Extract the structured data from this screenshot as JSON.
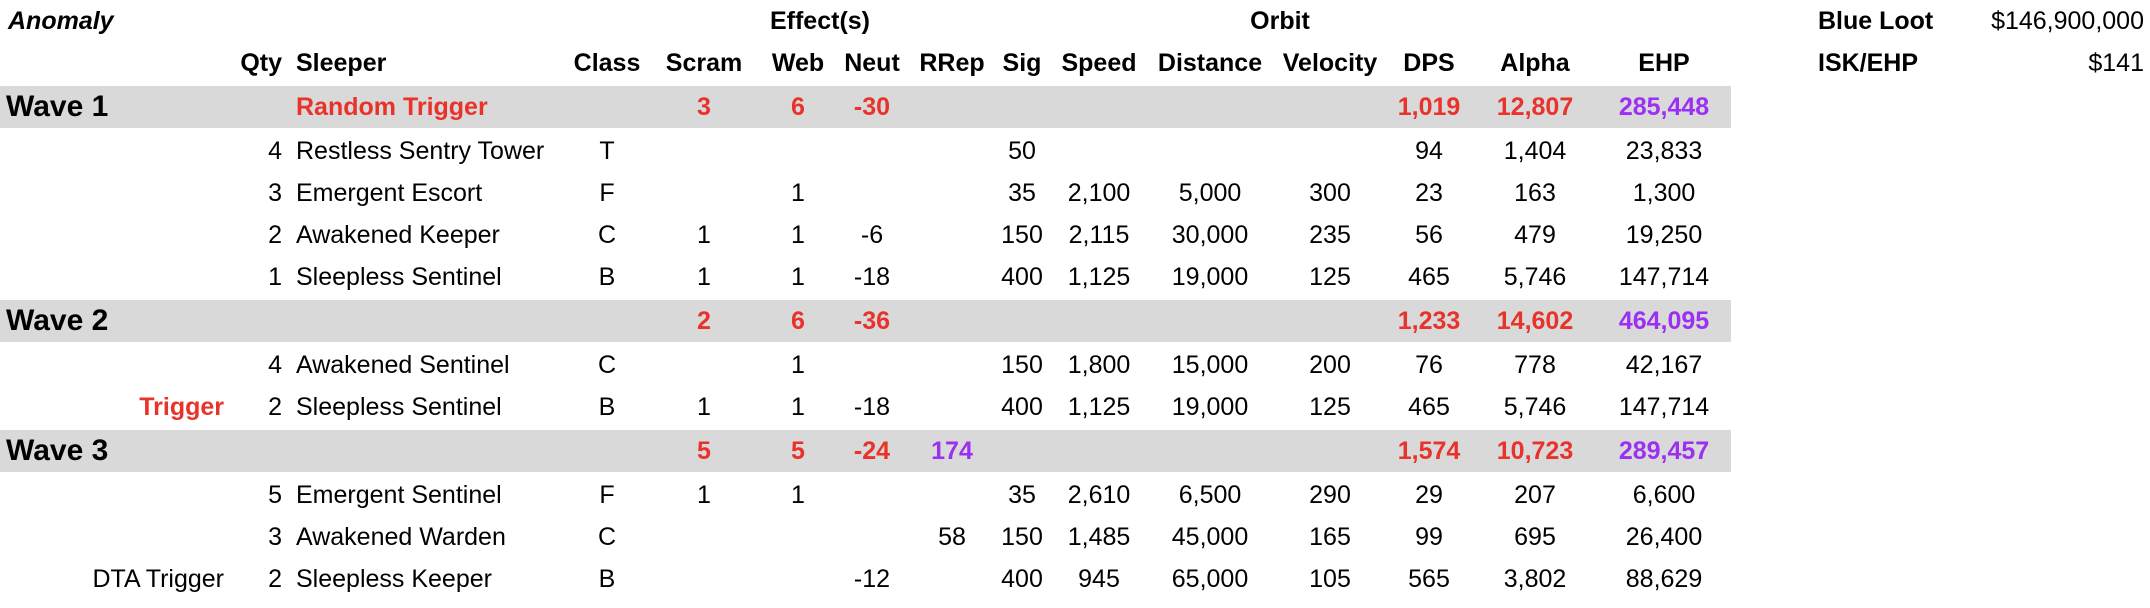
{
  "sheet": {
    "anomaly_label": "Anomaly",
    "effects_label": "Effect(s)",
    "orbit_label": "Orbit",
    "headers": {
      "qty": "Qty",
      "sleeper": "Sleeper",
      "class": "Class",
      "scram": "Scram",
      "web": "Web",
      "neut": "Neut",
      "rrep": "RRep",
      "sig": "Sig",
      "speed": "Speed",
      "distance": "Distance",
      "velocity": "Velocity",
      "dps": "DPS",
      "alpha": "Alpha",
      "ehp": "EHP"
    },
    "summary": {
      "blue_loot_label": "Blue Loot",
      "blue_loot_value": "$146,900,000",
      "isk_ehp_label": "ISK/EHP",
      "isk_ehp_value": "$141"
    },
    "rows": [
      {
        "type": "wave",
        "label": "Wave 1",
        "sleeper": "Random Trigger",
        "scram": "3",
        "web": "6",
        "neut": "-30",
        "rrep": "",
        "dps": "1,019",
        "alpha": "12,807",
        "ehp": "285,448"
      },
      {
        "type": "item",
        "note": "",
        "qty": "4",
        "sleeper": "Restless Sentry Tower",
        "class": "T",
        "scram": "",
        "web": "",
        "neut": "",
        "rrep": "",
        "sig": "50",
        "speed": "",
        "distance": "",
        "velocity": "",
        "dps": "94",
        "alpha": "1,404",
        "ehp": "23,833"
      },
      {
        "type": "item",
        "note": "",
        "qty": "3",
        "sleeper": "Emergent Escort",
        "class": "F",
        "scram": "",
        "web": "1",
        "neut": "",
        "rrep": "",
        "sig": "35",
        "speed": "2,100",
        "distance": "5,000",
        "velocity": "300",
        "dps": "23",
        "alpha": "163",
        "ehp": "1,300"
      },
      {
        "type": "item",
        "note": "",
        "qty": "2",
        "sleeper": "Awakened Keeper",
        "class": "C",
        "scram": "1",
        "web": "1",
        "neut": "-6",
        "rrep": "",
        "sig": "150",
        "speed": "2,115",
        "distance": "30,000",
        "velocity": "235",
        "dps": "56",
        "alpha": "479",
        "ehp": "19,250"
      },
      {
        "type": "item",
        "note": "",
        "qty": "1",
        "sleeper": "Sleepless Sentinel",
        "class": "B",
        "scram": "1",
        "web": "1",
        "neut": "-18",
        "rrep": "",
        "sig": "400",
        "speed": "1,125",
        "distance": "19,000",
        "velocity": "125",
        "dps": "465",
        "alpha": "5,746",
        "ehp": "147,714"
      },
      {
        "type": "wave",
        "label": "Wave 2",
        "sleeper": "",
        "scram": "2",
        "web": "6",
        "neut": "-36",
        "rrep": "",
        "dps": "1,233",
        "alpha": "14,602",
        "ehp": "464,095"
      },
      {
        "type": "item",
        "note": "",
        "qty": "4",
        "sleeper": "Awakened Sentinel",
        "class": "C",
        "scram": "",
        "web": "1",
        "neut": "",
        "rrep": "",
        "sig": "150",
        "speed": "1,800",
        "distance": "15,000",
        "velocity": "200",
        "dps": "76",
        "alpha": "778",
        "ehp": "42,167"
      },
      {
        "type": "item",
        "note": "Trigger",
        "note_red": true,
        "qty": "2",
        "sleeper": "Sleepless Sentinel",
        "class": "B",
        "scram": "1",
        "web": "1",
        "neut": "-18",
        "rrep": "",
        "sig": "400",
        "speed": "1,125",
        "distance": "19,000",
        "velocity": "125",
        "dps": "465",
        "alpha": "5,746",
        "ehp": "147,714"
      },
      {
        "type": "wave",
        "label": "Wave 3",
        "sleeper": "",
        "scram": "5",
        "web": "5",
        "neut": "-24",
        "rrep": "174",
        "dps": "1,574",
        "alpha": "10,723",
        "ehp": "289,457"
      },
      {
        "type": "item",
        "note": "",
        "qty": "5",
        "sleeper": "Emergent Sentinel",
        "class": "F",
        "scram": "1",
        "web": "1",
        "neut": "",
        "rrep": "",
        "sig": "35",
        "speed": "2,610",
        "distance": "6,500",
        "velocity": "290",
        "dps": "29",
        "alpha": "207",
        "ehp": "6,600"
      },
      {
        "type": "item",
        "note": "",
        "qty": "3",
        "sleeper": "Awakened Warden",
        "class": "C",
        "scram": "",
        "web": "",
        "neut": "",
        "rrep": "58",
        "sig": "150",
        "speed": "1,485",
        "distance": "45,000",
        "velocity": "165",
        "dps": "99",
        "alpha": "695",
        "ehp": "26,400"
      },
      {
        "type": "item",
        "note": "DTA Trigger",
        "note_red": false,
        "qty": "2",
        "sleeper": "Sleepless Keeper",
        "class": "B",
        "scram": "",
        "web": "",
        "neut": "-12",
        "rrep": "",
        "sig": "400",
        "speed": "945",
        "distance": "65,000",
        "velocity": "105",
        "dps": "565",
        "alpha": "3,802",
        "ehp": "88,629"
      }
    ]
  },
  "colors": {
    "red": "#e8322a",
    "purple": "#9b30f2",
    "shade": "#d9d9d9"
  }
}
